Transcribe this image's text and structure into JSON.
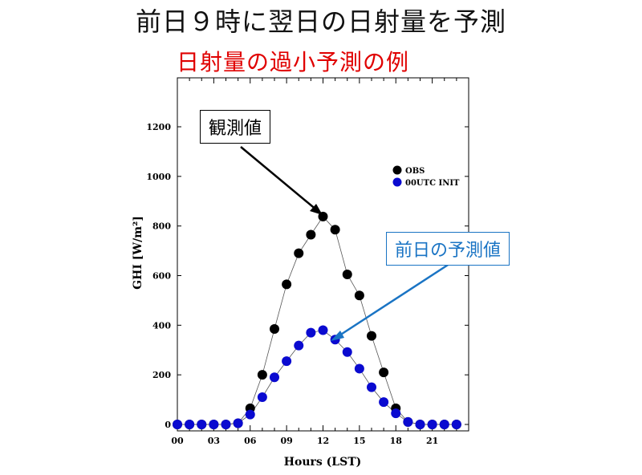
{
  "title": "前日９時に翌日の日射量を予測",
  "subtitle": "日射量の過小予測の例",
  "callouts": {
    "observed": "観測値",
    "forecast": "前日の予測値"
  },
  "colors": {
    "observed": "#000000",
    "forecast": "#0a0ad0",
    "subtitle": "#e00000",
    "forecast_callout": "#1a74c4"
  },
  "chart_data": {
    "type": "scatter",
    "xlabel": "Hours (LST)",
    "ylabel": "GHI [W/m²]",
    "xlim": [
      0,
      24
    ],
    "ylim": [
      -20,
      1400
    ],
    "xticks": [
      "00",
      "03",
      "06",
      "09",
      "12",
      "15",
      "18",
      "21"
    ],
    "yticks": [
      "0",
      "200",
      "400",
      "600",
      "800",
      "1000",
      "1200"
    ],
    "legend_position": "upper-right",
    "series": [
      {
        "name": "OBS",
        "marker": "circle",
        "color": "#000000",
        "x": [
          0,
          1,
          2,
          3,
          4,
          5,
          6,
          7,
          8,
          9,
          10,
          11,
          12,
          13,
          14,
          15,
          16,
          17,
          18,
          19,
          20,
          21,
          22,
          23
        ],
        "y": [
          0,
          0,
          0,
          0,
          0,
          5,
          65,
          200,
          385,
          565,
          690,
          765,
          838,
          785,
          605,
          520,
          357,
          210,
          65,
          10,
          0,
          0,
          0,
          0
        ]
      },
      {
        "name": "00UTC INIT",
        "marker": "circle",
        "color": "#0a0ad0",
        "x": [
          0,
          1,
          2,
          3,
          4,
          5,
          6,
          7,
          8,
          9,
          10,
          11,
          12,
          13,
          14,
          15,
          16,
          17,
          18,
          19,
          20,
          21,
          22,
          23
        ],
        "y": [
          0,
          0,
          0,
          0,
          0,
          5,
          40,
          110,
          190,
          255,
          318,
          370,
          380,
          342,
          292,
          225,
          150,
          90,
          45,
          10,
          0,
          0,
          0,
          0
        ]
      }
    ]
  }
}
